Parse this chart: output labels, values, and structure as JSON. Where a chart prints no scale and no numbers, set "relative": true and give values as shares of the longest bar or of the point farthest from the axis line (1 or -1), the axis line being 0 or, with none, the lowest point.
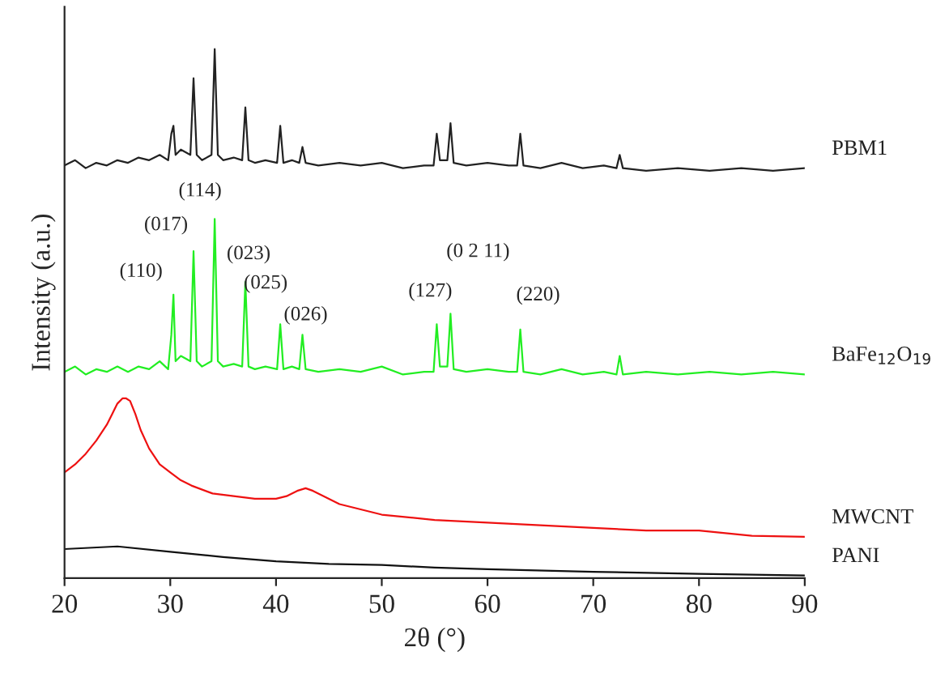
{
  "chart_data": {
    "type": "line",
    "relative": true,
    "xlabel": "2θ (°)",
    "ylabel": "Intensity (a.u.)",
    "xlim": [
      20,
      90
    ],
    "xticks": [
      20,
      30,
      40,
      50,
      60,
      70,
      80,
      90
    ],
    "grid": false,
    "legend": false,
    "marker": "none",
    "line_style": "solid",
    "series": [
      {
        "name": "PBM1",
        "color": "#222222",
        "x": [
          20,
          21,
          22,
          23,
          24,
          25,
          26,
          27,
          28,
          29,
          29.8,
          30.1,
          30.3,
          30.5,
          31,
          31.9,
          32.2,
          32.5,
          33,
          33.9,
          34.2,
          34.5,
          35,
          36,
          36.8,
          37.1,
          37.4,
          38,
          39,
          40.1,
          40.4,
          40.7,
          41.5,
          42.2,
          42.5,
          42.8,
          44,
          46,
          48,
          50,
          52,
          54,
          54.9,
          55.2,
          55.5,
          56.2,
          56.5,
          56.8,
          58,
          60,
          62,
          62.8,
          63.1,
          63.4,
          65,
          67,
          69,
          71,
          72.2,
          72.5,
          72.8,
          75,
          78,
          81,
          84,
          87,
          90
        ],
        "values": [
          0.78,
          0.79,
          0.775,
          0.785,
          0.78,
          0.79,
          0.785,
          0.795,
          0.79,
          0.8,
          0.79,
          0.84,
          0.855,
          0.8,
          0.81,
          0.8,
          0.945,
          0.8,
          0.79,
          0.8,
          1.0,
          0.8,
          0.79,
          0.795,
          0.79,
          0.89,
          0.79,
          0.785,
          0.79,
          0.785,
          0.855,
          0.785,
          0.79,
          0.785,
          0.815,
          0.785,
          0.78,
          0.785,
          0.78,
          0.785,
          0.775,
          0.78,
          0.78,
          0.84,
          0.79,
          0.79,
          0.86,
          0.785,
          0.78,
          0.785,
          0.78,
          0.78,
          0.84,
          0.78,
          0.775,
          0.785,
          0.775,
          0.78,
          0.775,
          0.8,
          0.775,
          0.77,
          0.775,
          0.77,
          0.775,
          0.77,
          0.775
        ]
      },
      {
        "name": "BaFe$_{12}$O$_{19}$",
        "color": "#22ee22",
        "x": [
          20,
          21,
          22,
          23,
          24,
          25,
          26,
          27,
          28,
          29,
          29.8,
          30.1,
          30.3,
          30.5,
          31,
          31.9,
          32.2,
          32.5,
          33,
          33.9,
          34.2,
          34.5,
          35,
          36,
          36.8,
          37.1,
          37.4,
          38,
          39,
          40.1,
          40.4,
          40.7,
          41.5,
          42.2,
          42.5,
          42.8,
          44,
          46,
          48,
          50,
          52,
          54,
          54.9,
          55.2,
          55.5,
          56.2,
          56.5,
          56.8,
          58,
          60,
          62,
          62.8,
          63.1,
          63.4,
          65,
          67,
          69,
          71,
          72.2,
          72.5,
          72.8,
          75,
          78,
          81,
          84,
          87,
          90
        ],
        "values": [
          0.39,
          0.4,
          0.385,
          0.395,
          0.39,
          0.4,
          0.39,
          0.4,
          0.395,
          0.41,
          0.395,
          0.46,
          0.536,
          0.41,
          0.42,
          0.41,
          0.618,
          0.41,
          0.4,
          0.41,
          0.679,
          0.41,
          0.4,
          0.405,
          0.4,
          0.56,
          0.4,
          0.395,
          0.4,
          0.395,
          0.48,
          0.395,
          0.4,
          0.395,
          0.46,
          0.395,
          0.39,
          0.395,
          0.39,
          0.4,
          0.385,
          0.39,
          0.39,
          0.48,
          0.4,
          0.4,
          0.5,
          0.395,
          0.39,
          0.395,
          0.39,
          0.39,
          0.47,
          0.39,
          0.385,
          0.395,
          0.385,
          0.39,
          0.385,
          0.42,
          0.385,
          0.39,
          0.385,
          0.39,
          0.385,
          0.39,
          0.385
        ]
      },
      {
        "name": "MWCNT",
        "color": "#ee1111",
        "x": [
          20,
          21,
          22,
          23,
          24,
          24.5,
          25,
          25.5,
          25.8,
          26.2,
          26.7,
          27.2,
          28,
          29,
          30,
          31,
          32,
          34,
          36,
          38,
          40,
          41,
          42,
          42.8,
          43.5,
          44.5,
          46,
          48,
          50,
          55,
          60,
          65,
          70,
          75,
          80,
          85,
          90
        ],
        "values": [
          0.2,
          0.215,
          0.235,
          0.26,
          0.29,
          0.31,
          0.33,
          0.34,
          0.34,
          0.335,
          0.31,
          0.28,
          0.245,
          0.215,
          0.2,
          0.185,
          0.175,
          0.16,
          0.155,
          0.15,
          0.15,
          0.155,
          0.165,
          0.17,
          0.165,
          0.155,
          0.14,
          0.13,
          0.12,
          0.11,
          0.105,
          0.1,
          0.095,
          0.09,
          0.09,
          0.08,
          0.078
        ]
      },
      {
        "name": "PANI",
        "color": "#111111",
        "x": [
          20,
          25,
          30,
          35,
          40,
          45,
          50,
          55,
          60,
          70,
          80,
          90
        ],
        "values": [
          0.055,
          0.06,
          0.05,
          0.04,
          0.032,
          0.027,
          0.025,
          0.02,
          0.017,
          0.012,
          0.008,
          0.005
        ]
      }
    ],
    "annotations": [
      {
        "text": "(110)",
        "x": 30.3,
        "y": 0.536
      },
      {
        "text": "(017)",
        "x": 32.2,
        "y": 0.618
      },
      {
        "text": "(114)",
        "x": 34.2,
        "y": 0.679
      },
      {
        "text": "(023)",
        "x": 37.1,
        "y": 0.56
      },
      {
        "text": "(025)",
        "x": 40.4,
        "y": 0.48
      },
      {
        "text": "(026)",
        "x": 42.5,
        "y": 0.46
      },
      {
        "text": "(127)",
        "x": 55.2,
        "y": 0.48
      },
      {
        "text": "(0 2 11)",
        "x": 56.5,
        "y": 0.5
      },
      {
        "text": "(220)",
        "x": 63.1,
        "y": 0.47
      }
    ]
  }
}
